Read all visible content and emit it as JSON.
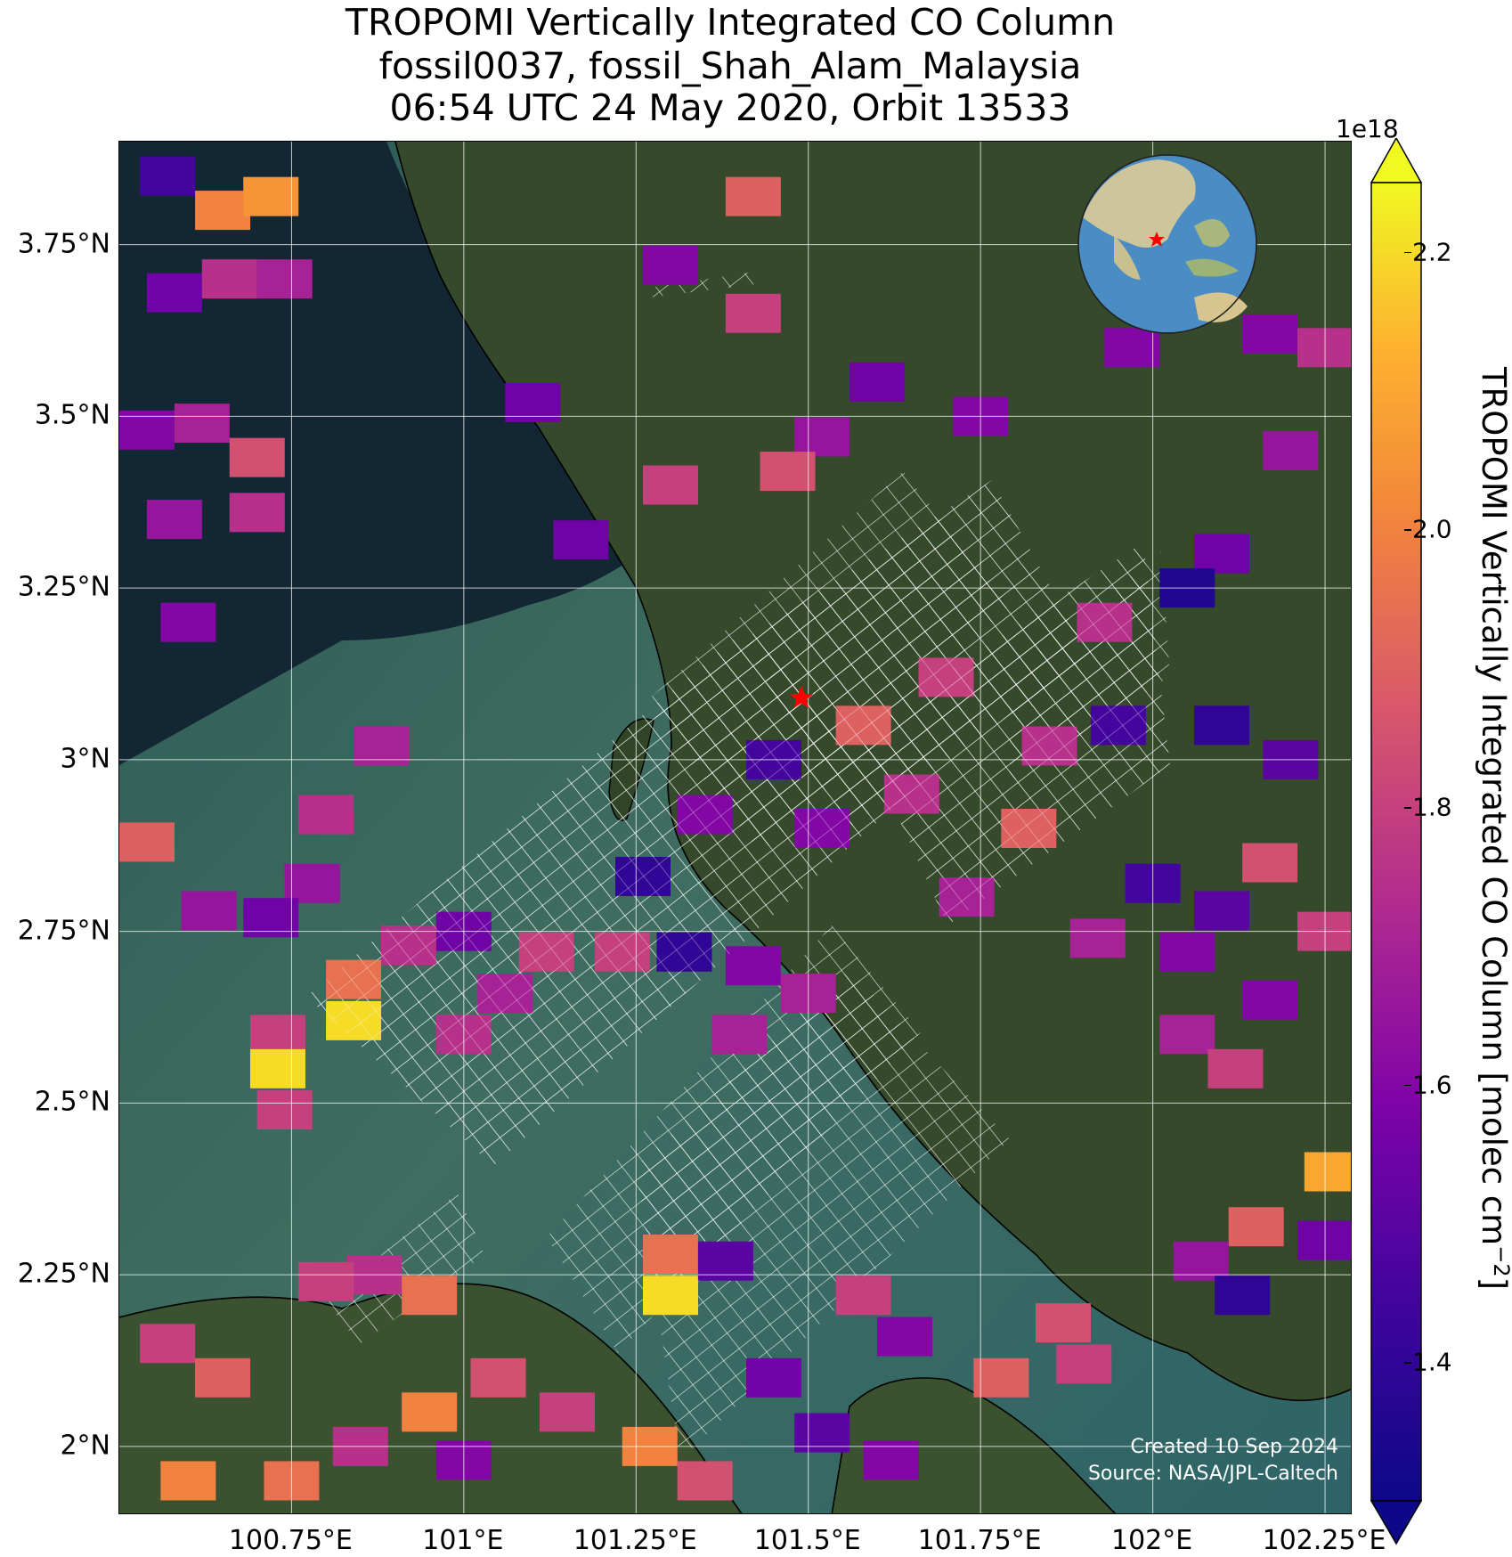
{
  "title": {
    "line1": "TROPOMI Vertically Integrated CO Column",
    "line2": "fossil0037, fossil_Shah_Alam_Malaysia",
    "line3": "06:54 UTC 24 May 2020, Orbit 13533"
  },
  "map": {
    "lon_range": [
      100.5,
      102.29
    ],
    "lat_range": [
      1.9,
      3.9
    ],
    "lon_ticks": [
      {
        "value": 100.75,
        "label": "100.75°E"
      },
      {
        "value": 101.0,
        "label": "101°E"
      },
      {
        "value": 101.25,
        "label": "101.25°E"
      },
      {
        "value": 101.5,
        "label": "101.5°E"
      },
      {
        "value": 101.75,
        "label": "101.75°E"
      },
      {
        "value": 102.0,
        "label": "102°E"
      },
      {
        "value": 102.25,
        "label": "102.25°E"
      }
    ],
    "lat_ticks": [
      {
        "value": 2.0,
        "label": "2°N"
      },
      {
        "value": 2.25,
        "label": "2.25°N"
      },
      {
        "value": 2.5,
        "label": "2.5°N"
      },
      {
        "value": 2.75,
        "label": "2.75°N"
      },
      {
        "value": 3.0,
        "label": "3°N"
      },
      {
        "value": 3.25,
        "label": "3.25°N"
      },
      {
        "value": 3.5,
        "label": "3.5°N"
      },
      {
        "value": 3.75,
        "label": "3.75°N"
      }
    ],
    "gridlines": true,
    "site_marker": {
      "lon": 101.49,
      "lat": 3.09,
      "color": "#ff0000",
      "icon": "star-icon"
    },
    "inset_globe": {
      "position": "top-right",
      "marker_color": "#ff0000"
    },
    "credit_line1": "Created 10 Sep 2024",
    "credit_line2": "Source: NASA/JPL-Caltech",
    "colors": {
      "land": "#34492a",
      "sea": "#315f58",
      "deep_sea": "#122633",
      "coast": "#000000",
      "hatch": "#ffffff"
    }
  },
  "chart_data": {
    "type": "heatmap",
    "units": "molec cm^-2",
    "cells_note": "approximate CO column pixel values (×1e18 molec cm^-2) at pixel centres",
    "pixels": [
      {
        "lon": 100.57,
        "lat": 3.85,
        "value": 1.45
      },
      {
        "lon": 100.65,
        "lat": 3.8,
        "value": 2.0
      },
      {
        "lon": 100.72,
        "lat": 3.82,
        "value": 2.05
      },
      {
        "lon": 100.58,
        "lat": 3.68,
        "value": 1.55
      },
      {
        "lon": 100.66,
        "lat": 3.7,
        "value": 1.75
      },
      {
        "lon": 100.74,
        "lat": 3.7,
        "value": 1.7
      },
      {
        "lon": 100.54,
        "lat": 3.48,
        "value": 1.6
      },
      {
        "lon": 100.62,
        "lat": 3.49,
        "value": 1.7
      },
      {
        "lon": 100.7,
        "lat": 3.44,
        "value": 1.85
      },
      {
        "lon": 100.58,
        "lat": 3.35,
        "value": 1.65
      },
      {
        "lon": 100.7,
        "lat": 3.36,
        "value": 1.75
      },
      {
        "lon": 100.6,
        "lat": 3.2,
        "value": 1.6
      },
      {
        "lon": 101.1,
        "lat": 3.52,
        "value": 1.55
      },
      {
        "lon": 101.17,
        "lat": 3.32,
        "value": 1.55
      },
      {
        "lon": 101.3,
        "lat": 3.4,
        "value": 1.8
      },
      {
        "lon": 101.3,
        "lat": 3.72,
        "value": 1.6
      },
      {
        "lon": 101.42,
        "lat": 3.82,
        "value": 1.9
      },
      {
        "lon": 101.42,
        "lat": 3.65,
        "value": 1.8
      },
      {
        "lon": 101.6,
        "lat": 3.55,
        "value": 1.55
      },
      {
        "lon": 101.52,
        "lat": 3.47,
        "value": 1.65
      },
      {
        "lon": 101.47,
        "lat": 3.42,
        "value": 1.85
      },
      {
        "lon": 101.75,
        "lat": 3.5,
        "value": 1.6
      },
      {
        "lon": 101.97,
        "lat": 3.6,
        "value": 1.6
      },
      {
        "lon": 102.05,
        "lat": 3.68,
        "value": 1.85
      },
      {
        "lon": 102.17,
        "lat": 3.62,
        "value": 1.6
      },
      {
        "lon": 102.25,
        "lat": 3.6,
        "value": 1.75
      },
      {
        "lon": 102.2,
        "lat": 3.45,
        "value": 1.65
      },
      {
        "lon": 102.1,
        "lat": 3.3,
        "value": 1.55
      },
      {
        "lon": 102.05,
        "lat": 3.25,
        "value": 1.35
      },
      {
        "lon": 101.93,
        "lat": 3.2,
        "value": 1.75
      },
      {
        "lon": 101.7,
        "lat": 3.12,
        "value": 1.8
      },
      {
        "lon": 101.58,
        "lat": 3.05,
        "value": 1.9
      },
      {
        "lon": 101.45,
        "lat": 3.0,
        "value": 1.45
      },
      {
        "lon": 101.85,
        "lat": 3.02,
        "value": 1.75
      },
      {
        "lon": 101.95,
        "lat": 3.05,
        "value": 1.45
      },
      {
        "lon": 102.1,
        "lat": 3.05,
        "value": 1.4
      },
      {
        "lon": 102.2,
        "lat": 3.0,
        "value": 1.5
      },
      {
        "lon": 101.35,
        "lat": 2.92,
        "value": 1.6
      },
      {
        "lon": 101.52,
        "lat": 2.9,
        "value": 1.6
      },
      {
        "lon": 101.65,
        "lat": 2.95,
        "value": 1.75
      },
      {
        "lon": 101.82,
        "lat": 2.9,
        "value": 1.9
      },
      {
        "lon": 101.73,
        "lat": 2.8,
        "value": 1.7
      },
      {
        "lon": 100.88,
        "lat": 3.02,
        "value": 1.7
      },
      {
        "lon": 100.8,
        "lat": 2.92,
        "value": 1.75
      },
      {
        "lon": 100.54,
        "lat": 2.88,
        "value": 1.9
      },
      {
        "lon": 100.78,
        "lat": 2.82,
        "value": 1.65
      },
      {
        "lon": 100.72,
        "lat": 2.77,
        "value": 1.55
      },
      {
        "lon": 100.63,
        "lat": 2.78,
        "value": 1.65
      },
      {
        "lon": 100.92,
        "lat": 2.73,
        "value": 1.75
      },
      {
        "lon": 101.0,
        "lat": 2.75,
        "value": 1.55
      },
      {
        "lon": 101.12,
        "lat": 2.72,
        "value": 1.8
      },
      {
        "lon": 101.23,
        "lat": 2.72,
        "value": 1.8
      },
      {
        "lon": 101.26,
        "lat": 2.83,
        "value": 1.4
      },
      {
        "lon": 101.32,
        "lat": 2.72,
        "value": 1.4
      },
      {
        "lon": 101.42,
        "lat": 2.7,
        "value": 1.6
      },
      {
        "lon": 101.5,
        "lat": 2.66,
        "value": 1.7
      },
      {
        "lon": 101.4,
        "lat": 2.6,
        "value": 1.7
      },
      {
        "lon": 100.84,
        "lat": 2.68,
        "value": 1.95
      },
      {
        "lon": 100.84,
        "lat": 2.62,
        "value": 2.2
      },
      {
        "lon": 100.73,
        "lat": 2.6,
        "value": 1.8
      },
      {
        "lon": 100.73,
        "lat": 2.55,
        "value": 2.2
      },
      {
        "lon": 100.74,
        "lat": 2.49,
        "value": 1.8
      },
      {
        "lon": 101.0,
        "lat": 2.6,
        "value": 1.75
      },
      {
        "lon": 101.06,
        "lat": 2.66,
        "value": 1.7
      },
      {
        "lon": 102.0,
        "lat": 2.82,
        "value": 1.45
      },
      {
        "lon": 101.92,
        "lat": 2.74,
        "value": 1.7
      },
      {
        "lon": 102.05,
        "lat": 2.72,
        "value": 1.6
      },
      {
        "lon": 102.1,
        "lat": 2.78,
        "value": 1.5
      },
      {
        "lon": 102.17,
        "lat": 2.85,
        "value": 1.85
      },
      {
        "lon": 102.25,
        "lat": 2.75,
        "value": 1.8
      },
      {
        "lon": 102.17,
        "lat": 2.65,
        "value": 1.6
      },
      {
        "lon": 102.05,
        "lat": 2.6,
        "value": 1.7
      },
      {
        "lon": 102.12,
        "lat": 2.55,
        "value": 1.8
      },
      {
        "lon": 102.26,
        "lat": 2.4,
        "value": 2.1
      },
      {
        "lon": 102.25,
        "lat": 2.3,
        "value": 1.55
      },
      {
        "lon": 102.15,
        "lat": 2.32,
        "value": 1.9
      },
      {
        "lon": 102.07,
        "lat": 2.27,
        "value": 1.65
      },
      {
        "lon": 102.13,
        "lat": 2.22,
        "value": 1.4
      },
      {
        "lon": 101.87,
        "lat": 2.18,
        "value": 1.85
      },
      {
        "lon": 101.9,
        "lat": 2.12,
        "value": 1.8
      },
      {
        "lon": 101.78,
        "lat": 2.1,
        "value": 1.9
      },
      {
        "lon": 101.58,
        "lat": 2.22,
        "value": 1.8
      },
      {
        "lon": 101.64,
        "lat": 2.16,
        "value": 1.6
      },
      {
        "lon": 101.45,
        "lat": 2.1,
        "value": 1.55
      },
      {
        "lon": 101.52,
        "lat": 2.02,
        "value": 1.5
      },
      {
        "lon": 101.62,
        "lat": 1.98,
        "value": 1.6
      },
      {
        "lon": 101.3,
        "lat": 2.28,
        "value": 1.95
      },
      {
        "lon": 101.3,
        "lat": 2.22,
        "value": 2.2
      },
      {
        "lon": 101.38,
        "lat": 2.27,
        "value": 1.5
      },
      {
        "lon": 100.87,
        "lat": 2.25,
        "value": 1.75
      },
      {
        "lon": 100.95,
        "lat": 2.22,
        "value": 1.95
      },
      {
        "lon": 100.8,
        "lat": 2.24,
        "value": 1.8
      },
      {
        "lon": 100.57,
        "lat": 2.15,
        "value": 1.8
      },
      {
        "lon": 100.65,
        "lat": 2.1,
        "value": 1.9
      },
      {
        "lon": 100.95,
        "lat": 2.05,
        "value": 2.0
      },
      {
        "lon": 101.05,
        "lat": 2.1,
        "value": 1.85
      },
      {
        "lon": 100.85,
        "lat": 2.0,
        "value": 1.75
      },
      {
        "lon": 101.0,
        "lat": 1.98,
        "value": 1.6
      },
      {
        "lon": 101.15,
        "lat": 2.05,
        "value": 1.8
      },
      {
        "lon": 101.27,
        "lat": 2.0,
        "value": 2.0
      },
      {
        "lon": 100.6,
        "lat": 1.95,
        "value": 2.0
      },
      {
        "lon": 100.75,
        "lat": 1.95,
        "value": 1.95
      },
      {
        "lon": 101.35,
        "lat": 1.95,
        "value": 1.85
      }
    ],
    "colorbar": {
      "label": "TROPOMI Vertically Integrated CO Column [molec cm",
      "label_exponent": "−2",
      "label_suffix": "]",
      "range": [
        1.3,
        2.25
      ],
      "ticks": [
        "1.4",
        "1.6",
        "1.8",
        "2.0",
        "2.2"
      ],
      "tick_values": [
        1.4,
        1.6,
        1.8,
        2.0,
        2.2
      ],
      "scale_label": "1e18",
      "colormap": "plasma",
      "extend": "both"
    }
  }
}
